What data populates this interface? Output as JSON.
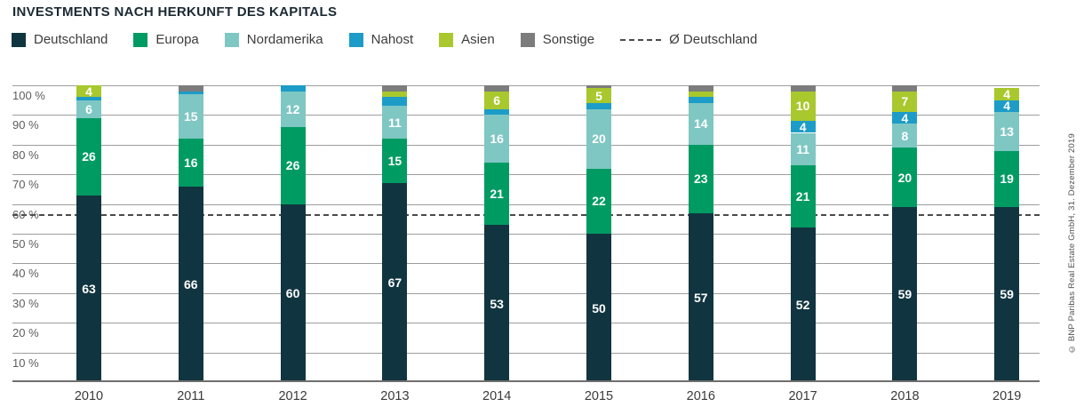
{
  "title": "INVESTMENTS NACH HERKUNFT DES KAPITALS",
  "copyright": "© BNP Paribas Real Estate GmbH, 31. Dezember 2019",
  "chart_data": {
    "type": "bar",
    "stacked": true,
    "title": "INVESTMENTS NACH HERKUNFT DES KAPITALS",
    "categories": [
      "2010",
      "2011",
      "2012",
      "2013",
      "2014",
      "2015",
      "2016",
      "2017",
      "2018",
      "2019"
    ],
    "series": [
      {
        "name": "Deutschland",
        "color": "#113540",
        "values": [
          63,
          66,
          60,
          67,
          53,
          50,
          57,
          52,
          59,
          59
        ]
      },
      {
        "name": "Europa",
        "color": "#009b63",
        "values": [
          26,
          16,
          26,
          15,
          21,
          22,
          23,
          21,
          20,
          19
        ]
      },
      {
        "name": "Nordamerika",
        "color": "#7fc7c3",
        "values": [
          6,
          15,
          12,
          11,
          16,
          20,
          14,
          11,
          8,
          13
        ]
      },
      {
        "name": "Nahost",
        "color": "#1d9cc8",
        "values": [
          1,
          1,
          2,
          3,
          2,
          2,
          2,
          4,
          4,
          4
        ]
      },
      {
        "name": "Asien",
        "color": "#a8c82d",
        "values": [
          4,
          0,
          0,
          2,
          6,
          5,
          2,
          10,
          7,
          4
        ]
      },
      {
        "name": "Sonstige",
        "color": "#7c7c7c",
        "values": [
          0,
          2,
          0,
          2,
          2,
          1,
          2,
          2,
          2,
          0
        ]
      }
    ],
    "y_ticks": [
      "100 %",
      "90 %",
      "80 %",
      "70 %",
      "60 %",
      "50 %",
      "40 %",
      "30 %",
      "20 %",
      "10 %"
    ],
    "ylim": [
      0,
      100
    ],
    "grid": true,
    "legend_position": "top",
    "value_label_min": 4,
    "avg_line": {
      "label": "Ø Deutschland",
      "value_pct": 56.5
    }
  }
}
